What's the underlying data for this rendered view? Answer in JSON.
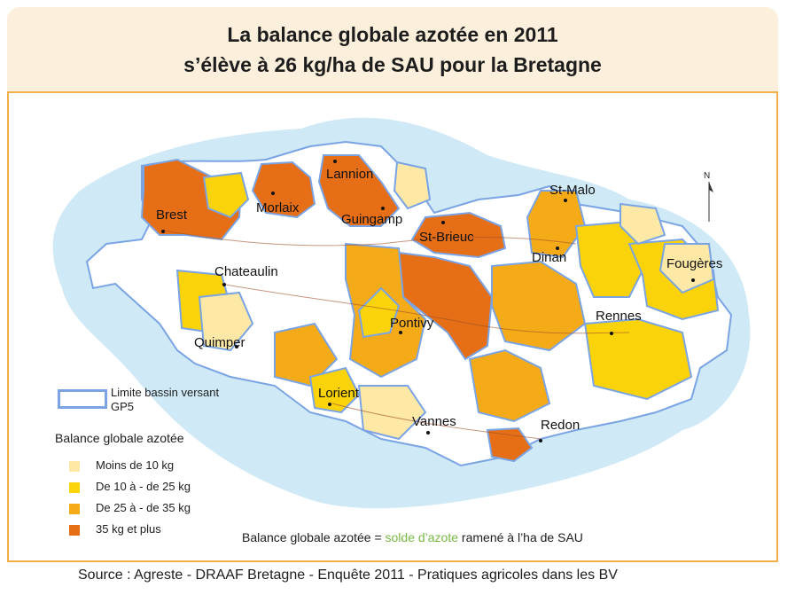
{
  "title": {
    "line1": "La balance globale azotée en 2011",
    "line2": "s’élève à 26 kg/ha de SAU pour la Bretagne"
  },
  "map": {
    "region": "Bretagne",
    "cities": [
      {
        "name": "Brest"
      },
      {
        "name": "Morlaix"
      },
      {
        "name": "Lannion"
      },
      {
        "name": "Guingamp"
      },
      {
        "name": "St-Brieuc"
      },
      {
        "name": "St-Malo"
      },
      {
        "name": "Dinan"
      },
      {
        "name": "Fougères"
      },
      {
        "name": "Rennes"
      },
      {
        "name": "Chateaulin"
      },
      {
        "name": "Pontivy"
      },
      {
        "name": "Quimper"
      },
      {
        "name": "Lorient"
      },
      {
        "name": "Vannes"
      },
      {
        "name": "Redon"
      }
    ],
    "north_label": "N",
    "colors": {
      "sea": "#cfe9f6",
      "basin_border": "#7aa4e4",
      "no_data": "#ffffff",
      "class1": "#fde8a6",
      "class2": "#fbd30a",
      "class3": "#f5ab18",
      "class4": "#e66e16"
    }
  },
  "legend": {
    "basin_label": "Limite bassin versant GP5",
    "title": "Balance globale azotée",
    "items": [
      {
        "label": "Moins de 10 kg",
        "color": "#fde8a6"
      },
      {
        "label": "De 10 à - de 25 kg",
        "color": "#fbd30a"
      },
      {
        "label": "De 25 à - de 35 kg",
        "color": "#f5ab18"
      },
      {
        "label": "35 kg et plus",
        "color": "#e66e16"
      }
    ]
  },
  "formula": {
    "prefix": "Balance globale azotée = ",
    "highlight": "solde d’azote",
    "suffix": " ramené à l’ha de SAU"
  },
  "source": "Source : Agreste - DRAAF Bretagne - Enquête 2011 - Pratiques agricoles dans les BV"
}
